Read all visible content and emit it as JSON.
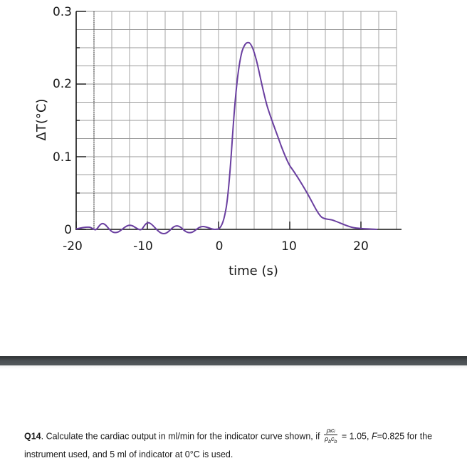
{
  "chart_data": {
    "type": "line",
    "title": "",
    "xlabel": "time (s)",
    "ylabel": "ΔT(°C)",
    "xlim": [
      -20,
      25
    ],
    "ylim": [
      0,
      0.3
    ],
    "x_ticks": [
      -20,
      -10,
      0,
      10,
      20
    ],
    "x_tick_labels": [
      "-20",
      "-10",
      "0",
      "10",
      "20"
    ],
    "y_ticks": [
      0,
      0.1,
      0.2,
      0.3
    ],
    "y_tick_labels": [
      "0",
      "0.1",
      "0.2",
      "0.3"
    ],
    "grid": true,
    "grid_spacing": {
      "x": 2.5,
      "y": 0.025
    },
    "dotted_reference_line_x": -17.5,
    "line_color": "#6a3fa0",
    "series": [
      {
        "name": "indicator curve",
        "x": [
          -20,
          -18.5,
          -17.5,
          -16.5,
          -15.5,
          -14,
          -12.5,
          -11,
          -10,
          -9,
          -7.5,
          -6,
          -4.5,
          -3,
          -1.5,
          -0.2,
          0.5,
          1.2,
          2,
          2.8,
          3.5,
          4.2,
          5,
          6,
          7,
          8,
          9,
          10,
          11,
          12,
          13,
          14,
          14.8,
          16,
          17,
          18,
          19,
          20,
          21,
          22
        ],
        "values": [
          0.001,
          0.004,
          0.0,
          0.007,
          0.0,
          -0.005,
          0.006,
          0.0,
          0.007,
          -0.002,
          -0.007,
          0.004,
          -0.007,
          0.004,
          0.001,
          0.0,
          0.01,
          0.04,
          0.12,
          0.21,
          0.25,
          0.257,
          0.245,
          0.2,
          0.165,
          0.13,
          0.1,
          0.08,
          0.063,
          0.045,
          0.027,
          0.013,
          0.009,
          0.007,
          0.004,
          0.002,
          0.001,
          0.0005,
          0.0002,
          0.0
        ]
      }
    ],
    "peak": {
      "t": 4.2,
      "deltaT": 0.257
    }
  },
  "axes": {
    "ylabel": "ΔT(°C)",
    "xlabel": "time (s)",
    "y_ticks": [
      "0.3",
      "0.2",
      "0.1",
      "0"
    ],
    "x_ticks": [
      "-20",
      "-10",
      "0",
      "10",
      "20"
    ]
  },
  "question": {
    "number": "Q14",
    "text_1": ". Calculate the cardiac output in ml/min for the indicator curve shown, if ",
    "fraction_numerator": "ρᵢcᵢ",
    "fraction_denominator": "ρ_bc_b",
    "text_2": " = 1.05, ",
    "f_label": "F",
    "text_3": "=0.825 for the instrument used, and 5 ml of indicator at 0°C is used."
  },
  "colors": {
    "curve": "#6a3fa0",
    "grid": "#9a9a9a",
    "axis": "#111111",
    "divider": "#45494c"
  }
}
